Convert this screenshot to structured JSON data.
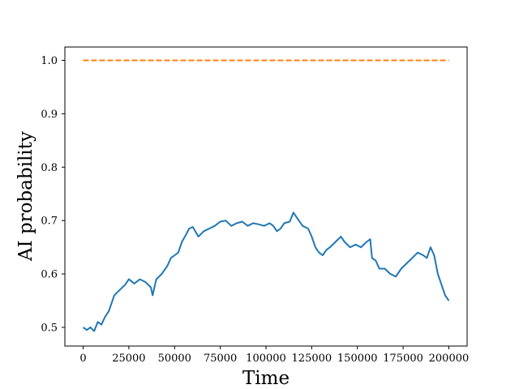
{
  "chart_data": {
    "type": "line",
    "title": "",
    "xlabel": "Time",
    "ylabel": "AI probability",
    "xlim": [
      -10000,
      210000
    ],
    "ylim": [
      0.465,
      1.025
    ],
    "grid": false,
    "x_ticks": [
      0,
      25000,
      50000,
      75000,
      100000,
      125000,
      150000,
      175000,
      200000
    ],
    "x_tick_labels": [
      "0",
      "25000",
      "50000",
      "75000",
      "100000",
      "125000",
      "150000",
      "175000",
      "200000"
    ],
    "y_ticks": [
      0.5,
      0.6,
      0.7,
      0.8,
      0.9,
      1.0
    ],
    "y_tick_labels": [
      "0.5",
      "0.6",
      "0.7",
      "0.8",
      "0.9",
      "1.0"
    ],
    "series": [
      {
        "color": "#1f77b4",
        "style": "solid",
        "x": [
          0,
          2000,
          4000,
          6000,
          8000,
          10000,
          12000,
          14000,
          17000,
          20000,
          23000,
          25000,
          28000,
          31000,
          34000,
          37000,
          38000,
          40000,
          43000,
          46000,
          48000,
          50000,
          52000,
          54000,
          56000,
          58000,
          60000,
          63000,
          66000,
          69000,
          72000,
          75000,
          78000,
          81000,
          84000,
          87000,
          90000,
          93000,
          96000,
          99000,
          102000,
          104000,
          106000,
          108000,
          110000,
          113000,
          115000,
          117000,
          120000,
          123000,
          125000,
          127000,
          129000,
          131000,
          133000,
          135000,
          138000,
          141000,
          143000,
          146000,
          149000,
          152000,
          155000,
          157000,
          158000,
          160000,
          162000,
          165000,
          168000,
          171000,
          174000,
          177000,
          180000,
          183000,
          186000,
          188000,
          190000,
          192000,
          194000,
          196000,
          198000,
          200000
        ],
        "y": [
          0.5,
          0.495,
          0.5,
          0.493,
          0.51,
          0.505,
          0.52,
          0.53,
          0.56,
          0.57,
          0.58,
          0.59,
          0.582,
          0.59,
          0.585,
          0.575,
          0.56,
          0.59,
          0.6,
          0.615,
          0.63,
          0.635,
          0.64,
          0.66,
          0.672,
          0.685,
          0.688,
          0.67,
          0.68,
          0.685,
          0.69,
          0.698,
          0.7,
          0.69,
          0.695,
          0.698,
          0.69,
          0.695,
          0.693,
          0.69,
          0.695,
          0.69,
          0.68,
          0.685,
          0.695,
          0.698,
          0.715,
          0.705,
          0.69,
          0.685,
          0.67,
          0.65,
          0.64,
          0.635,
          0.645,
          0.65,
          0.66,
          0.67,
          0.66,
          0.65,
          0.655,
          0.65,
          0.66,
          0.665,
          0.63,
          0.625,
          0.61,
          0.61,
          0.6,
          0.595,
          0.61,
          0.62,
          0.63,
          0.64,
          0.635,
          0.63,
          0.65,
          0.635,
          0.6,
          0.58,
          0.56,
          0.55
        ]
      },
      {
        "color": "#ff7f0e",
        "style": "dashed",
        "x": [
          0,
          200000
        ],
        "y": [
          1.0,
          1.0
        ]
      }
    ]
  }
}
